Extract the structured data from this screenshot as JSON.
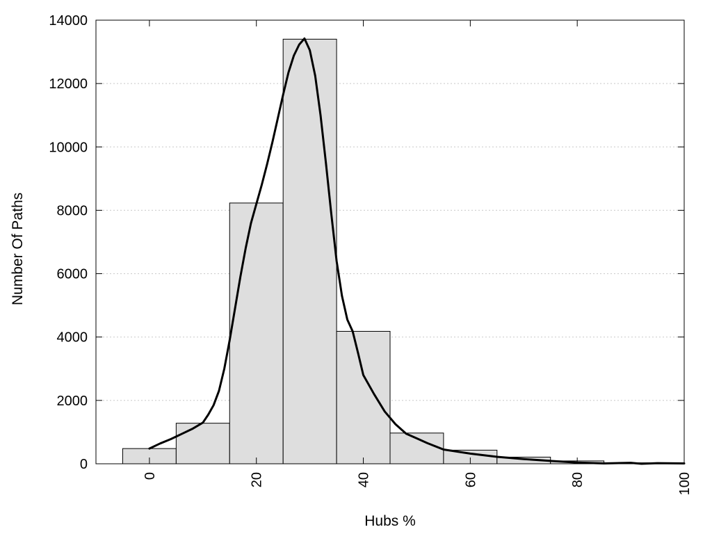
{
  "chart_data": {
    "type": "bar",
    "title": "",
    "xlabel": "Hubs %",
    "ylabel": "Number Of Paths",
    "xlim": [
      -10,
      100
    ],
    "ylim": [
      0,
      14000
    ],
    "x_ticks": [
      0,
      20,
      40,
      60,
      80,
      100
    ],
    "x_tick_labels": [
      "0",
      "20",
      "40",
      "60",
      "80",
      "100"
    ],
    "y_ticks": [
      0,
      2000,
      4000,
      6000,
      8000,
      10000,
      12000,
      14000
    ],
    "y_tick_labels": [
      "0",
      "2000",
      "4000",
      "6000",
      "8000",
      "10000",
      "12000",
      "14000"
    ],
    "grid": "horizontal dotted",
    "bin_width": 10,
    "bins": [
      {
        "x": 0,
        "value": 480
      },
      {
        "x": 10,
        "value": 1280
      },
      {
        "x": 20,
        "value": 8230
      },
      {
        "x": 30,
        "value": 13400
      },
      {
        "x": 40,
        "value": 4180
      },
      {
        "x": 50,
        "value": 970
      },
      {
        "x": 60,
        "value": 430
      },
      {
        "x": 70,
        "value": 210
      },
      {
        "x": 80,
        "value": 90
      },
      {
        "x": 90,
        "value": 30
      },
      {
        "x": 100,
        "value": 10
      }
    ],
    "curve": {
      "x": [
        0,
        2,
        4,
        6,
        8,
        10,
        11,
        12,
        13,
        14,
        15,
        16,
        17,
        18,
        19,
        20,
        21,
        22,
        23,
        24,
        25,
        26,
        27,
        28,
        29,
        30,
        31,
        32,
        33,
        34,
        35,
        36,
        37,
        38,
        39,
        40,
        42,
        44,
        46,
        48,
        50,
        52,
        55,
        60,
        65,
        70,
        75,
        80,
        85,
        90,
        92,
        95,
        100
      ],
      "y": [
        480,
        640,
        780,
        940,
        1100,
        1300,
        1550,
        1850,
        2300,
        3000,
        3900,
        4900,
        5900,
        6800,
        7600,
        8200,
        8800,
        9450,
        10150,
        10900,
        11650,
        12350,
        12880,
        13230,
        13420,
        13050,
        12250,
        11000,
        9500,
        7900,
        6400,
        5300,
        4550,
        4180,
        3500,
        2800,
        2200,
        1650,
        1250,
        950,
        800,
        650,
        450,
        320,
        220,
        150,
        90,
        40,
        10,
        30,
        0,
        20,
        10
      ]
    },
    "colors": {
      "bar_fill": "#dedede",
      "bar_stroke": "#000000",
      "curve": "#000000",
      "grid": "#c8c8c8"
    }
  }
}
